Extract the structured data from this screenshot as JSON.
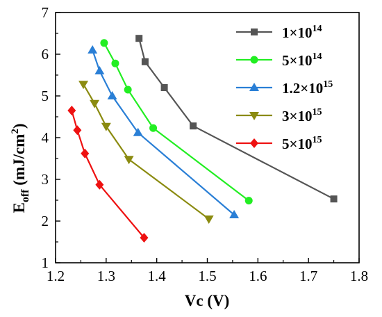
{
  "chart_data": {
    "type": "line",
    "xlabel": "Vc (V)",
    "ylabel": {
      "base": "E",
      "sub": "off",
      "unit": " (mJ/cm",
      "unit_sup": "2",
      "unit_end": ")"
    },
    "xlim": [
      1.2,
      1.8
    ],
    "ylim": [
      1,
      7
    ],
    "xticks": [
      "1.2",
      "1.3",
      "1.4",
      "1.5",
      "1.6",
      "1.7",
      "1.8"
    ],
    "yticks": [
      "1",
      "2",
      "3",
      "4",
      "5",
      "6",
      "7"
    ],
    "grid": false,
    "legend_position": "top-right",
    "series": [
      {
        "name": {
          "mantissa": "1×10",
          "exponent": "14"
        },
        "color": "#555555",
        "marker": "square",
        "x": [
          1.365,
          1.377,
          1.415,
          1.472,
          1.75
        ],
        "y": [
          6.38,
          5.82,
          5.2,
          4.28,
          2.53
        ]
      },
      {
        "name": {
          "mantissa": "5×10",
          "exponent": "14"
        },
        "color": "#22ee22",
        "marker": "circle",
        "x": [
          1.296,
          1.318,
          1.343,
          1.393,
          1.582
        ],
        "y": [
          6.27,
          5.78,
          5.15,
          4.23,
          2.49
        ]
      },
      {
        "name": {
          "mantissa": "1.2×10",
          "exponent": "15"
        },
        "color": "#2a7fd6",
        "marker": "triangle-up",
        "x": [
          1.273,
          1.287,
          1.312,
          1.363,
          1.553
        ],
        "y": [
          6.1,
          5.6,
          5.0,
          4.12,
          2.15
        ]
      },
      {
        "name": {
          "mantissa": "3×10",
          "exponent": "15"
        },
        "color": "#8b8b10",
        "marker": "triangle-down",
        "x": [
          1.255,
          1.277,
          1.3,
          1.345,
          1.503
        ],
        "y": [
          5.28,
          4.82,
          4.27,
          3.48,
          2.05
        ]
      },
      {
        "name": {
          "mantissa": "5×10",
          "exponent": "15"
        },
        "color": "#ee1111",
        "marker": "diamond",
        "x": [
          1.232,
          1.243,
          1.258,
          1.287,
          1.375
        ],
        "y": [
          4.65,
          4.18,
          3.62,
          2.87,
          1.6
        ]
      }
    ]
  }
}
